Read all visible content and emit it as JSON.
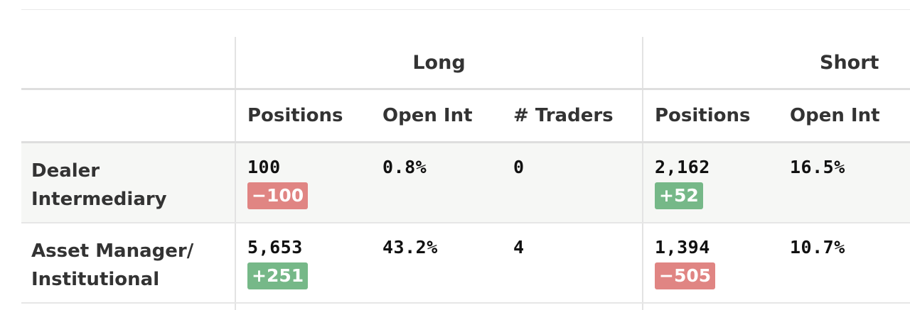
{
  "table": {
    "groups": {
      "long": "Long",
      "short": "Short"
    },
    "columns": {
      "long_positions": "Positions",
      "long_open_int": "Open Int",
      "long_traders": "# Traders",
      "short_positions": "Positions",
      "short_open_int": "Open Int"
    },
    "rows": [
      {
        "label_line1": "Dealer",
        "label_line2": "Intermediary",
        "long_positions": "100",
        "long_change": "−100",
        "long_change_sign": "negative",
        "long_open_int": "0.8%",
        "long_traders": "0",
        "short_positions": "2,162",
        "short_change": "+52",
        "short_change_sign": "positive",
        "short_open_int": "16.5%"
      },
      {
        "label_line1": "Asset Manager/",
        "label_line2": "Institutional",
        "long_positions": "5,653",
        "long_change": "+251",
        "long_change_sign": "positive",
        "long_open_int": "43.2%",
        "long_traders": "4",
        "short_positions": "1,394",
        "short_change": "−505",
        "short_change_sign": "negative",
        "short_open_int": "10.7%"
      }
    ]
  },
  "colors": {
    "positive_badge": "#76b888",
    "negative_badge": "#e08583",
    "row_shade": "#f6f7f5"
  }
}
